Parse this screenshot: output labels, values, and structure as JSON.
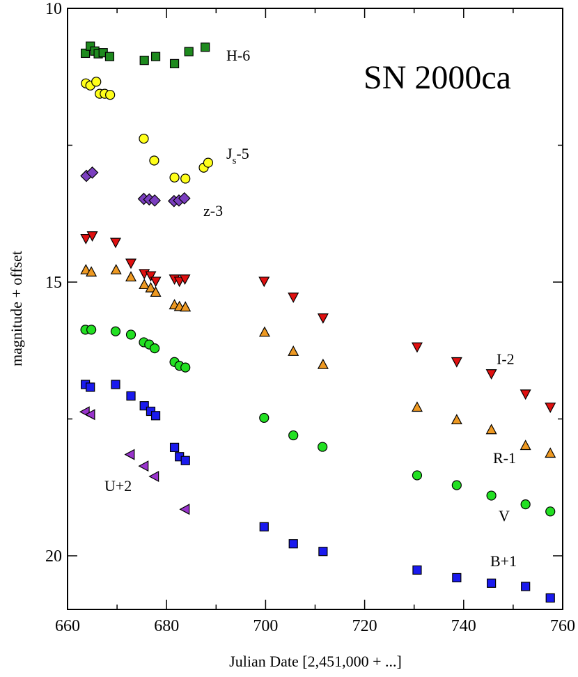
{
  "chart_data": {
    "type": "scatter",
    "title": "SN 2000ca",
    "xlabel": "Julian Date [2,451,000 + ...]",
    "ylabel": "magnitude + offset",
    "xlim": [
      660,
      760
    ],
    "ylim": [
      10,
      21.2
    ],
    "y_inverted": true,
    "x_ticks": [
      660,
      680,
      700,
      720,
      740,
      760
    ],
    "y_ticks": [
      10,
      15,
      20
    ],
    "series": [
      {
        "name": "H-6",
        "label": "H-6",
        "marker": "square",
        "color": "#1e8a1e",
        "x": [
          663.6,
          664.6,
          665.5,
          666.2,
          667.2,
          668.5,
          675.5,
          677.8,
          681.6,
          684.5,
          687.8
        ],
        "y": [
          10.82,
          10.69,
          10.78,
          10.83,
          10.81,
          10.88,
          10.95,
          10.88,
          11.01,
          10.79,
          10.71
        ]
      },
      {
        "name": "Js-5",
        "label_main": "J",
        "label_sub": "s",
        "label_suffix": "-5",
        "marker": "circle",
        "color": "#ffff1a",
        "x": [
          663.7,
          664.6,
          665.8,
          666.5,
          667.5,
          668.6,
          675.4,
          677.5,
          681.6,
          683.8,
          687.5,
          688.4
        ],
        "y": [
          11.37,
          11.41,
          11.34,
          11.56,
          11.56,
          11.58,
          12.38,
          12.78,
          13.09,
          13.11,
          12.91,
          12.82
        ]
      },
      {
        "name": "z-3",
        "label": "z-3",
        "marker": "diamond",
        "color": "#7b3fbf",
        "x": [
          663.8,
          665.0,
          675.4,
          676.5,
          677.6,
          681.5,
          682.5,
          683.6
        ],
        "y": [
          13.06,
          13.0,
          13.48,
          13.49,
          13.51,
          13.52,
          13.51,
          13.47
        ]
      },
      {
        "name": "I-2",
        "label": "I-2",
        "marker": "triangle-down",
        "color": "#e01010",
        "x": [
          663.7,
          665.0,
          669.7,
          672.8,
          675.5,
          676.8,
          677.8,
          681.6,
          682.6,
          683.7,
          699.7,
          705.6,
          711.6,
          730.6,
          738.6,
          745.6,
          752.5,
          757.5
        ],
        "y": [
          14.2,
          14.15,
          14.27,
          14.65,
          14.84,
          14.88,
          14.98,
          14.94,
          14.98,
          14.94,
          14.98,
          15.27,
          15.65,
          16.18,
          16.45,
          16.67,
          17.04,
          17.28
        ]
      },
      {
        "name": "R-1",
        "label": "R-1",
        "marker": "triangle-up",
        "color": "#ee9922",
        "x": [
          663.7,
          664.8,
          669.8,
          672.8,
          675.5,
          676.8,
          677.8,
          681.6,
          682.6,
          683.8,
          699.8,
          705.6,
          711.6,
          730.6,
          738.6,
          745.6,
          752.5,
          757.5
        ],
        "y": [
          14.78,
          14.82,
          14.78,
          14.91,
          15.05,
          15.11,
          15.19,
          15.42,
          15.45,
          15.46,
          15.92,
          16.27,
          16.51,
          17.29,
          17.52,
          17.7,
          17.99,
          18.13
        ]
      },
      {
        "name": "V",
        "label": "V",
        "marker": "circle",
        "color": "#22e022",
        "x": [
          663.6,
          664.8,
          669.7,
          672.8,
          675.4,
          676.5,
          677.6,
          681.6,
          682.6,
          683.8,
          699.7,
          705.6,
          711.5,
          730.6,
          738.6,
          745.6,
          752.5,
          757.5
        ],
        "y": [
          15.87,
          15.87,
          15.9,
          15.96,
          16.1,
          16.14,
          16.21,
          16.46,
          16.53,
          16.56,
          17.48,
          17.8,
          18.01,
          18.53,
          18.71,
          18.9,
          19.06,
          19.19
        ]
      },
      {
        "name": "B+1",
        "label": "B+1",
        "marker": "square",
        "color": "#1a1aee",
        "x": [
          663.6,
          664.6,
          669.7,
          672.8,
          675.5,
          676.8,
          677.8,
          681.6,
          682.6,
          683.8,
          699.7,
          705.6,
          711.6,
          730.6,
          738.6,
          745.6,
          752.5,
          757.5
        ],
        "y": [
          16.87,
          16.92,
          16.87,
          17.08,
          17.26,
          17.36,
          17.44,
          18.02,
          18.19,
          18.26,
          19.47,
          19.78,
          19.92,
          20.26,
          20.4,
          20.5,
          20.56,
          20.77
        ]
      },
      {
        "name": "U+2",
        "label": "U+2",
        "marker": "triangle-left",
        "color": "#9933cc",
        "x": [
          663.6,
          664.7,
          672.7,
          675.5,
          677.6,
          683.8
        ],
        "y": [
          17.37,
          17.42,
          18.15,
          18.36,
          18.55,
          19.15
        ]
      }
    ]
  }
}
